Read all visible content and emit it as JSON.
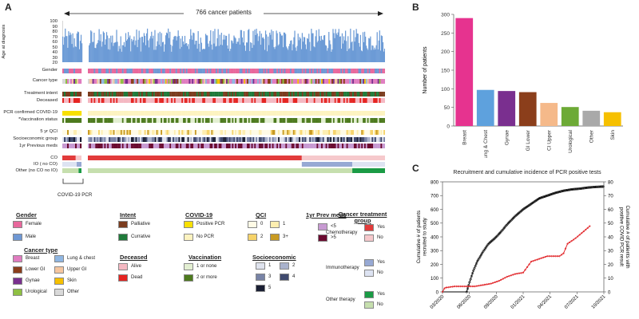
{
  "panel_a": {
    "letter": "A",
    "patients_label": "766 cancer patients",
    "y_axis_label": "Age at diagnosis",
    "y_ticks": [
      "100",
      "90",
      "80",
      "70",
      "60",
      "50",
      "40",
      "30",
      "20"
    ],
    "row_labels": [
      "Gender",
      "Cancer type",
      "Treatment intent",
      "Deceased",
      "PCR confirmed COVID-19",
      "*Vaccination status",
      "5 yr QCI",
      "Socioeconomic group",
      "1yr Previous meds",
      "CO",
      "IO ( no CO)",
      "Other (no CO no IO)"
    ],
    "bracket_label": "COVID-19 PCR"
  },
  "legend": {
    "gender": {
      "title": "Gender",
      "items": [
        "Female",
        "Male"
      ],
      "colors": [
        "#e8689c",
        "#6f98d4"
      ]
    },
    "cancer_type": {
      "title": "Cancer type",
      "items": [
        "Breast",
        "Lung & chest",
        "Lower GI",
        "Upper GI",
        "Gynae",
        "Skin",
        "Urological",
        "Other"
      ],
      "colors": [
        "#e07cc0",
        "#8fb6e2",
        "#8b3e1b",
        "#f5c6a0",
        "#7a2f8f",
        "#f6c000",
        "#8fc043",
        "#d9d9d9"
      ]
    },
    "intent": {
      "title": "Intent",
      "items": [
        "Palliative",
        "Currative"
      ],
      "colors": [
        "#7b3c1e",
        "#1f7a3a"
      ]
    },
    "deceased": {
      "title": "Deceased",
      "items": [
        "Alive",
        "Dead"
      ],
      "colors": [
        "#f4b8c2",
        "#e52421"
      ]
    },
    "covid": {
      "title": "COVID-19",
      "items": [
        "Positive PCR",
        "No PCR"
      ],
      "colors": [
        "#f8e000",
        "#fdf3c0"
      ]
    },
    "vaccination": {
      "title": "Vaccination",
      "items": [
        "1 or none",
        "2 or more"
      ],
      "colors": [
        "#e3efd2",
        "#4d7a1e"
      ]
    },
    "qci": {
      "title": "QCI",
      "items": [
        "0",
        "1",
        "2",
        "3+"
      ],
      "colors": [
        "#fffbe6",
        "#fdeeb0",
        "#f6d36a",
        "#c89a22"
      ]
    },
    "socio": {
      "title": "Socioeconomic",
      "items": [
        "1",
        "2",
        "3",
        "4",
        "5"
      ],
      "colors": [
        "#dfe3ee",
        "#a9b2cc",
        "#7883a6",
        "#404a6e",
        "#1a1f33"
      ]
    },
    "prev_meds": {
      "title": "1yr Prev meds",
      "items": [
        "<5",
        ">5"
      ],
      "colors": [
        "#c79ad2",
        "#6b0a30"
      ]
    },
    "treatment_group": {
      "title": "Cancer treatment group",
      "groups": [
        "Chemotherapy",
        "Immunotherapy",
        "Other therapy"
      ],
      "yes_label": "Yes",
      "no_label": "No",
      "colors": {
        "chemo_yes": "#e23b3b",
        "chemo_no": "#f6c9cc",
        "immuno_yes": "#97a9d4",
        "immuno_no": "#dde3f2",
        "other_yes": "#1a9b45",
        "other_no": "#c6dfae"
      }
    }
  },
  "panel_b": {
    "letter": "B",
    "chart_data": {
      "type": "bar",
      "categories": [
        "Breast",
        "Lung & Chest",
        "Gynae",
        "GI Lower",
        "CI Upper",
        "Urological",
        "Other",
        "Skin"
      ],
      "values": [
        290,
        97,
        94,
        91,
        62,
        51,
        41,
        37
      ],
      "colors": [
        "#e6338f",
        "#5ea1dd",
        "#7a2f8f",
        "#8b3e1b",
        "#f5b98a",
        "#6daa36",
        "#a9a9a9",
        "#f6c000"
      ],
      "ylabel": "Number of patients",
      "yticks": [
        "0",
        "50",
        "100",
        "150",
        "200",
        "250",
        "300"
      ],
      "ylim": [
        0,
        300
      ]
    }
  },
  "panel_c": {
    "letter": "C",
    "chart_data": {
      "type": "line",
      "title": "Recruitment and cumulative incidence of PCR positive tests",
      "ylabel_left": "Cumulative # of patients recruited to study",
      "ylabel_right": "Cumulative # of patients with positive COVID PCR result",
      "xticks": [
        "03/2020",
        "06/2020",
        "09/2020",
        "01/2021",
        "04/2021",
        "07/2021",
        "10/2021"
      ],
      "yticks_left": [
        "0",
        "100",
        "200",
        "300",
        "400",
        "500",
        "600",
        "700",
        "800"
      ],
      "yticks_right": [
        "0",
        "10",
        "20",
        "30",
        "40",
        "50",
        "60",
        "70",
        "80"
      ],
      "ylim_left": [
        0,
        800
      ],
      "ylim_right": [
        0,
        80
      ],
      "series": [
        {
          "name": "Recruited (cumulative)",
          "color": "#000000",
          "axis": "left",
          "points": [
            [
              0,
              0
            ],
            [
              3.0,
              0
            ],
            [
              3.3,
              60
            ],
            [
              3.8,
              150
            ],
            [
              4.3,
              220
            ],
            [
              5.0,
              290
            ],
            [
              5.7,
              350
            ],
            [
              6.5,
              390
            ],
            [
              7.3,
              440
            ],
            [
              8.0,
              490
            ],
            [
              9.0,
              550
            ],
            [
              10.0,
              600
            ],
            [
              11.0,
              640
            ],
            [
              12.0,
              680
            ],
            [
              13.0,
              700
            ],
            [
              14.0,
              720
            ],
            [
              15.0,
              735
            ],
            [
              16.0,
              745
            ],
            [
              17.0,
              750
            ],
            [
              18.0,
              758
            ],
            [
              19.0,
              763
            ],
            [
              20.0,
              766
            ]
          ]
        },
        {
          "name": "PCR positive (cumulative)",
          "color": "#e0191d",
          "axis": "right",
          "points": [
            [
              0,
              0
            ],
            [
              0.3,
              3
            ],
            [
              1.5,
              4
            ],
            [
              3.0,
              4
            ],
            [
              4.0,
              4
            ],
            [
              5.0,
              5
            ],
            [
              6.0,
              6
            ],
            [
              7.0,
              8
            ],
            [
              8.0,
              11
            ],
            [
              9.0,
              13
            ],
            [
              10.0,
              14
            ],
            [
              11.0,
              22
            ],
            [
              12.0,
              24
            ],
            [
              13.0,
              26
            ],
            [
              14.5,
              26
            ],
            [
              15.0,
              28
            ],
            [
              15.5,
              35
            ],
            [
              16.5,
              39
            ],
            [
              17.5,
              44
            ],
            [
              18.3,
              48
            ]
          ]
        }
      ]
    }
  }
}
